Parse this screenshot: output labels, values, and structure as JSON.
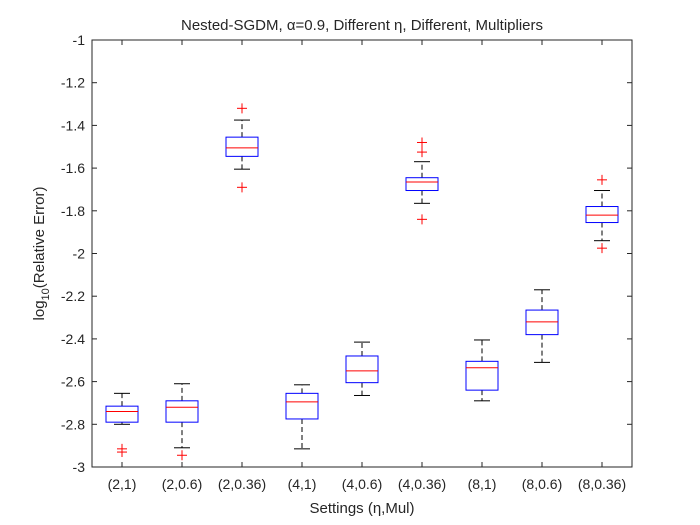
{
  "chart_data": {
    "type": "boxplot",
    "title": "Nested-SGDM, α=0.9, Different η, Different, Multipliers",
    "xlabel": "Settings (η,Mul)",
    "ylabel": "log10(Relative Error)",
    "ylabel_parts": {
      "base": "log",
      "sub": "10",
      "rest": "(Relative Error)"
    },
    "ylim": [
      -3,
      -1
    ],
    "yticks": [
      -3,
      -2.8,
      -2.6,
      -2.4,
      -2.2,
      -2,
      -1.8,
      -1.6,
      -1.4,
      -1.2,
      -1
    ],
    "ytick_labels": [
      "-3",
      "-2.8",
      "-2.6",
      "-2.4",
      "-2.2",
      "-2",
      "-1.8",
      "-1.6",
      "-1.4",
      "-1.2",
      "-1"
    ],
    "categories": [
      "(2,1)",
      "(2,0.6)",
      "(2,0.36)",
      "(4,1)",
      "(4,0.6)",
      "(4,0.36)",
      "(8,1)",
      "(8,0.6)",
      "(8,0.36)"
    ],
    "boxes": [
      {
        "whisker_low": -2.8,
        "q1": -2.79,
        "median": -2.74,
        "q3": -2.715,
        "whisker_high": -2.655,
        "outliers": [
          -2.915,
          -2.93
        ]
      },
      {
        "whisker_low": -2.91,
        "q1": -2.79,
        "median": -2.72,
        "q3": -2.69,
        "whisker_high": -2.61,
        "outliers": [
          -2.945
        ]
      },
      {
        "whisker_low": -1.605,
        "q1": -1.545,
        "median": -1.505,
        "q3": -1.455,
        "whisker_high": -1.375,
        "outliers": [
          -1.32,
          -1.69
        ]
      },
      {
        "whisker_low": -2.915,
        "q1": -2.775,
        "median": -2.695,
        "q3": -2.655,
        "whisker_high": -2.615,
        "outliers": []
      },
      {
        "whisker_low": -2.665,
        "q1": -2.605,
        "median": -2.55,
        "q3": -2.48,
        "whisker_high": -2.415,
        "outliers": []
      },
      {
        "whisker_low": -1.765,
        "q1": -1.705,
        "median": -1.665,
        "q3": -1.645,
        "whisker_high": -1.57,
        "outliers": [
          -1.48,
          -1.525,
          -1.84
        ]
      },
      {
        "whisker_low": -2.69,
        "q1": -2.64,
        "median": -2.535,
        "q3": -2.505,
        "whisker_high": -2.405,
        "outliers": []
      },
      {
        "whisker_low": -2.51,
        "q1": -2.38,
        "median": -2.32,
        "q3": -2.265,
        "whisker_high": -2.17,
        "outliers": []
      },
      {
        "whisker_low": -1.94,
        "q1": -1.855,
        "median": -1.82,
        "q3": -1.78,
        "whisker_high": -1.705,
        "outliers": [
          -1.655,
          -1.975
        ]
      }
    ],
    "colors": {
      "box": "#0000ff",
      "median": "#ff0000",
      "whisker": "#000000",
      "outlier": "#ff0000",
      "axis": "#262626"
    },
    "grid": false,
    "legend": "none"
  }
}
